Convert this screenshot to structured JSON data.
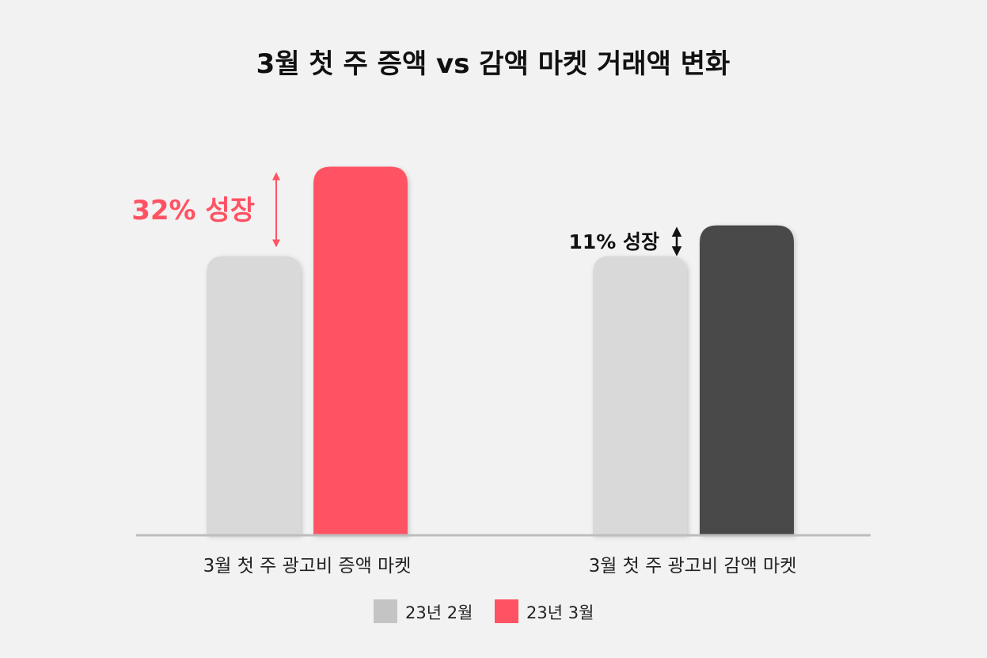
{
  "chart_data": {
    "type": "bar",
    "title": "3월 첫 주 증액 vs 감액 마켓 거래액 변화",
    "categories": [
      "3월 첫 주 광고비 증액 마켓",
      "3월 첫 주 광고비 감액 마켓"
    ],
    "series": [
      {
        "name": "23년 2월",
        "values": [
          100,
          100
        ]
      },
      {
        "name": "23년 3월",
        "values": [
          132,
          111
        ]
      }
    ],
    "ylim": [
      0,
      152
    ],
    "grid": false,
    "legend": "bottom-center",
    "annotations": [
      {
        "category": 0,
        "text": "32% 성장",
        "color": "#ff5263"
      },
      {
        "category": 1,
        "text": "11% 성장",
        "color": "#111111"
      }
    ],
    "bar_colors": [
      [
        "#d9d9d9",
        "#ff5263"
      ],
      [
        "#d9d9d9",
        "#4a4a4a"
      ]
    ],
    "legend_colors": [
      "#c4c4c4",
      "#ff5263"
    ],
    "baseline_color": "#bdbdbd"
  }
}
